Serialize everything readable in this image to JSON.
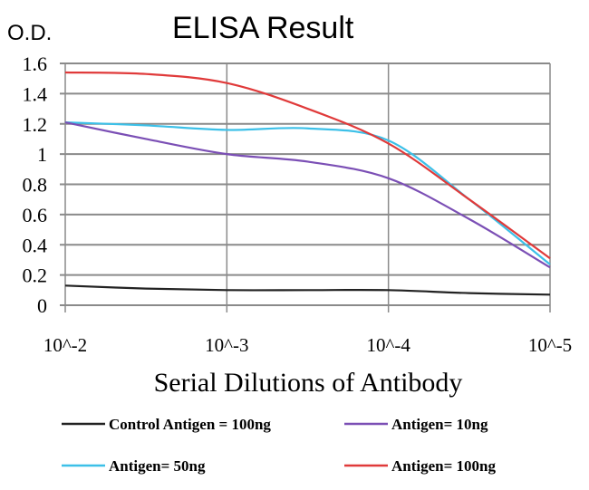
{
  "chart_data": {
    "type": "line",
    "title": "ELISA Result",
    "ylabel": "O.D.",
    "xlabel": "Serial Dilutions of Antibody",
    "x_log10": [
      -2,
      -2.5,
      -3,
      -3.5,
      -4,
      -4.5,
      -5
    ],
    "x_tick_values": [
      -2,
      -3,
      -4,
      -5
    ],
    "x_tick_labels": [
      "10^-2",
      "10^-3",
      "10^-4",
      "10^-5"
    ],
    "y_ticks": [
      "0",
      "0.2",
      "0.4",
      "0.6",
      "0.8",
      "1",
      "1.2",
      "1.4",
      "1.6"
    ],
    "ylim": [
      0,
      1.6
    ],
    "grid": true,
    "legend_position": "bottom",
    "series": [
      {
        "name": "Control Antigen = 100ng",
        "color": "#222222",
        "values": [
          0.13,
          0.11,
          0.1,
          0.1,
          0.1,
          0.08,
          0.07
        ]
      },
      {
        "name": "Antigen= 10ng",
        "color": "#7b4fb5",
        "values": [
          1.21,
          1.1,
          1.0,
          0.95,
          0.84,
          0.57,
          0.25
        ]
      },
      {
        "name": "Antigen= 50ng",
        "color": "#3cc0e8",
        "values": [
          1.21,
          1.19,
          1.16,
          1.17,
          1.09,
          0.7,
          0.27
        ]
      },
      {
        "name": "Antigen= 100ng",
        "color": "#e03a3a",
        "values": [
          1.54,
          1.53,
          1.47,
          1.3,
          1.07,
          0.7,
          0.31
        ]
      }
    ]
  }
}
